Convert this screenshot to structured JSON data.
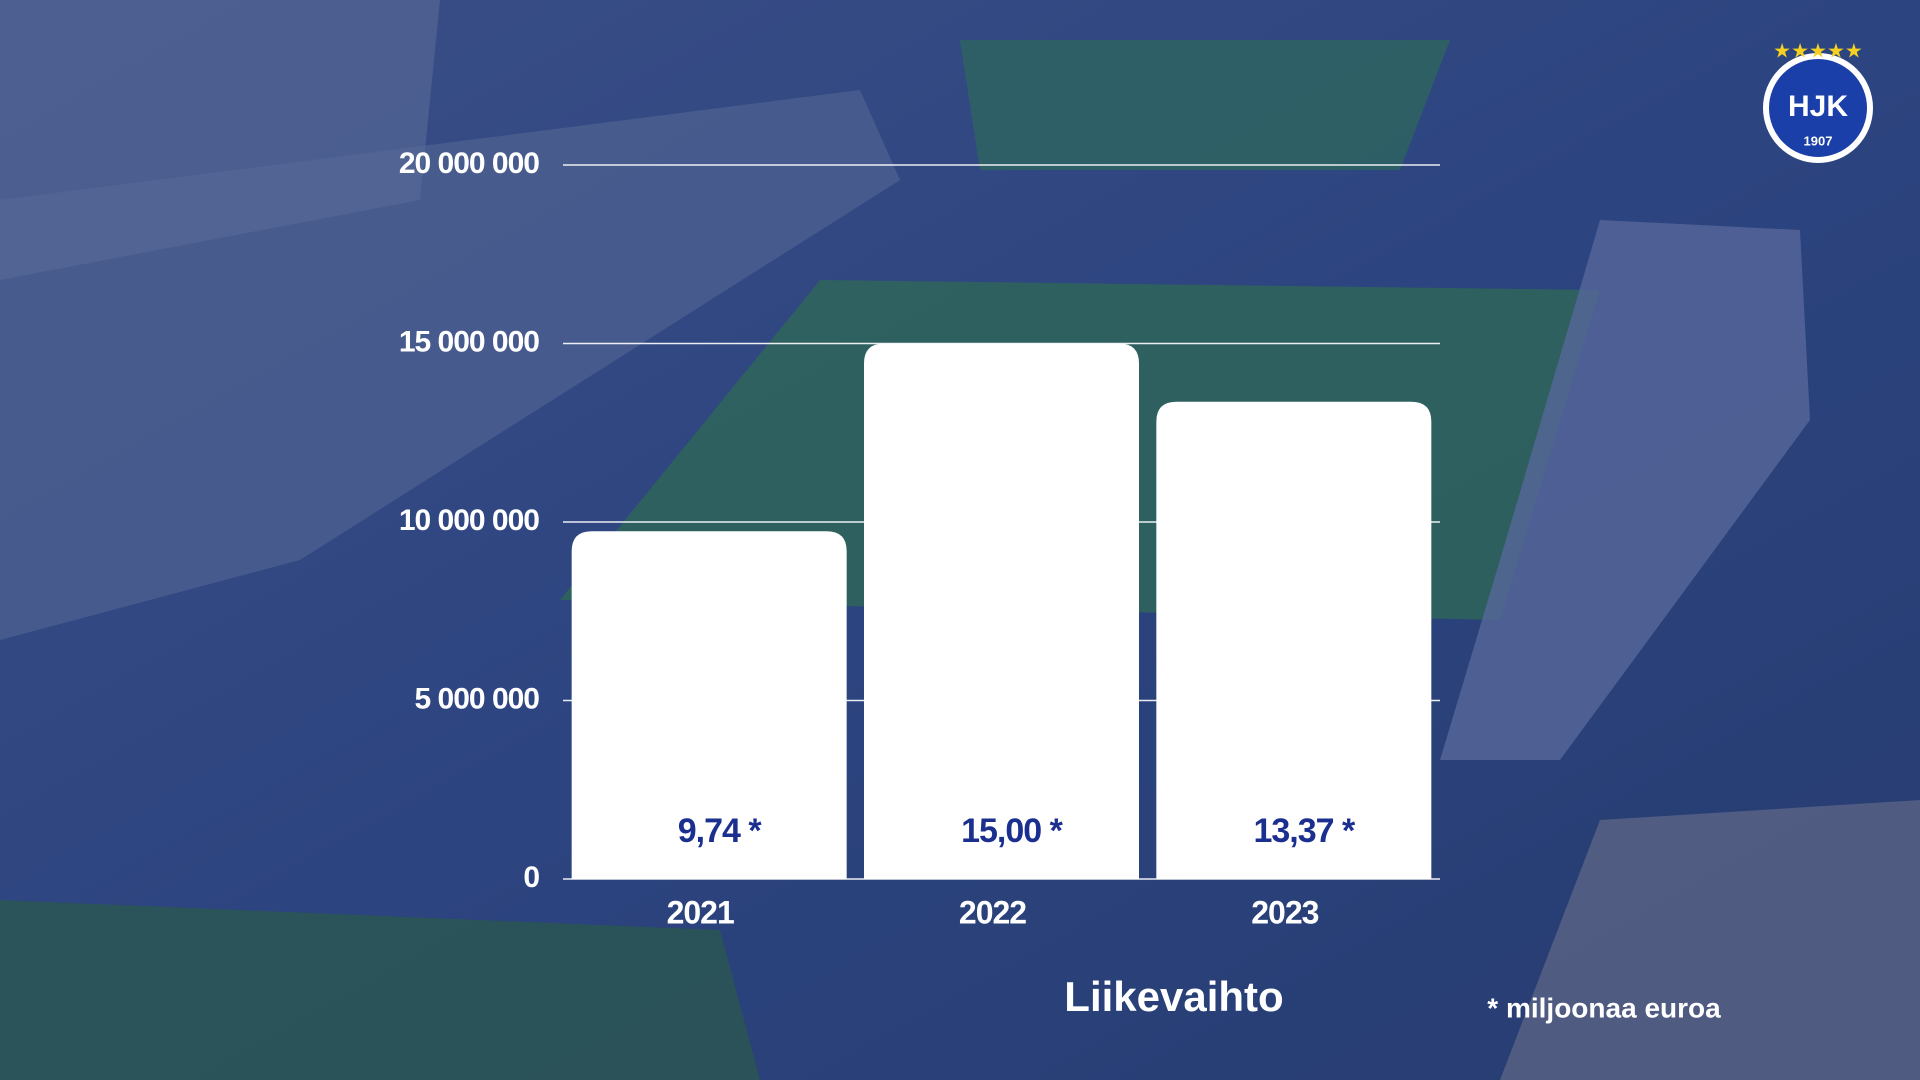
{
  "chart_data": {
    "type": "bar",
    "title": "Liikevaihto",
    "footnote": "* miljoonaa euroa",
    "categories": [
      "2021",
      "2022",
      "2023"
    ],
    "values": [
      9740000,
      15000000,
      13370000
    ],
    "value_labels": [
      "9,74 *",
      "15,00 *",
      "13,37 *"
    ],
    "color": "#ffffff",
    "label_color": "#1b2f8f",
    "ylim": [
      0,
      20000000
    ],
    "yticks": [
      0,
      {
        "value": 5000000,
        "label": "5 000 000"
      },
      {
        "value": 10000000,
        "label": "10 000 000"
      },
      {
        "value": 15000000,
        "label": "15 000 000"
      },
      {
        "value": 20000000,
        "label": "20 000 000"
      }
    ],
    "grid": true
  },
  "logo": {
    "name": "HJK",
    "year": "1907"
  }
}
